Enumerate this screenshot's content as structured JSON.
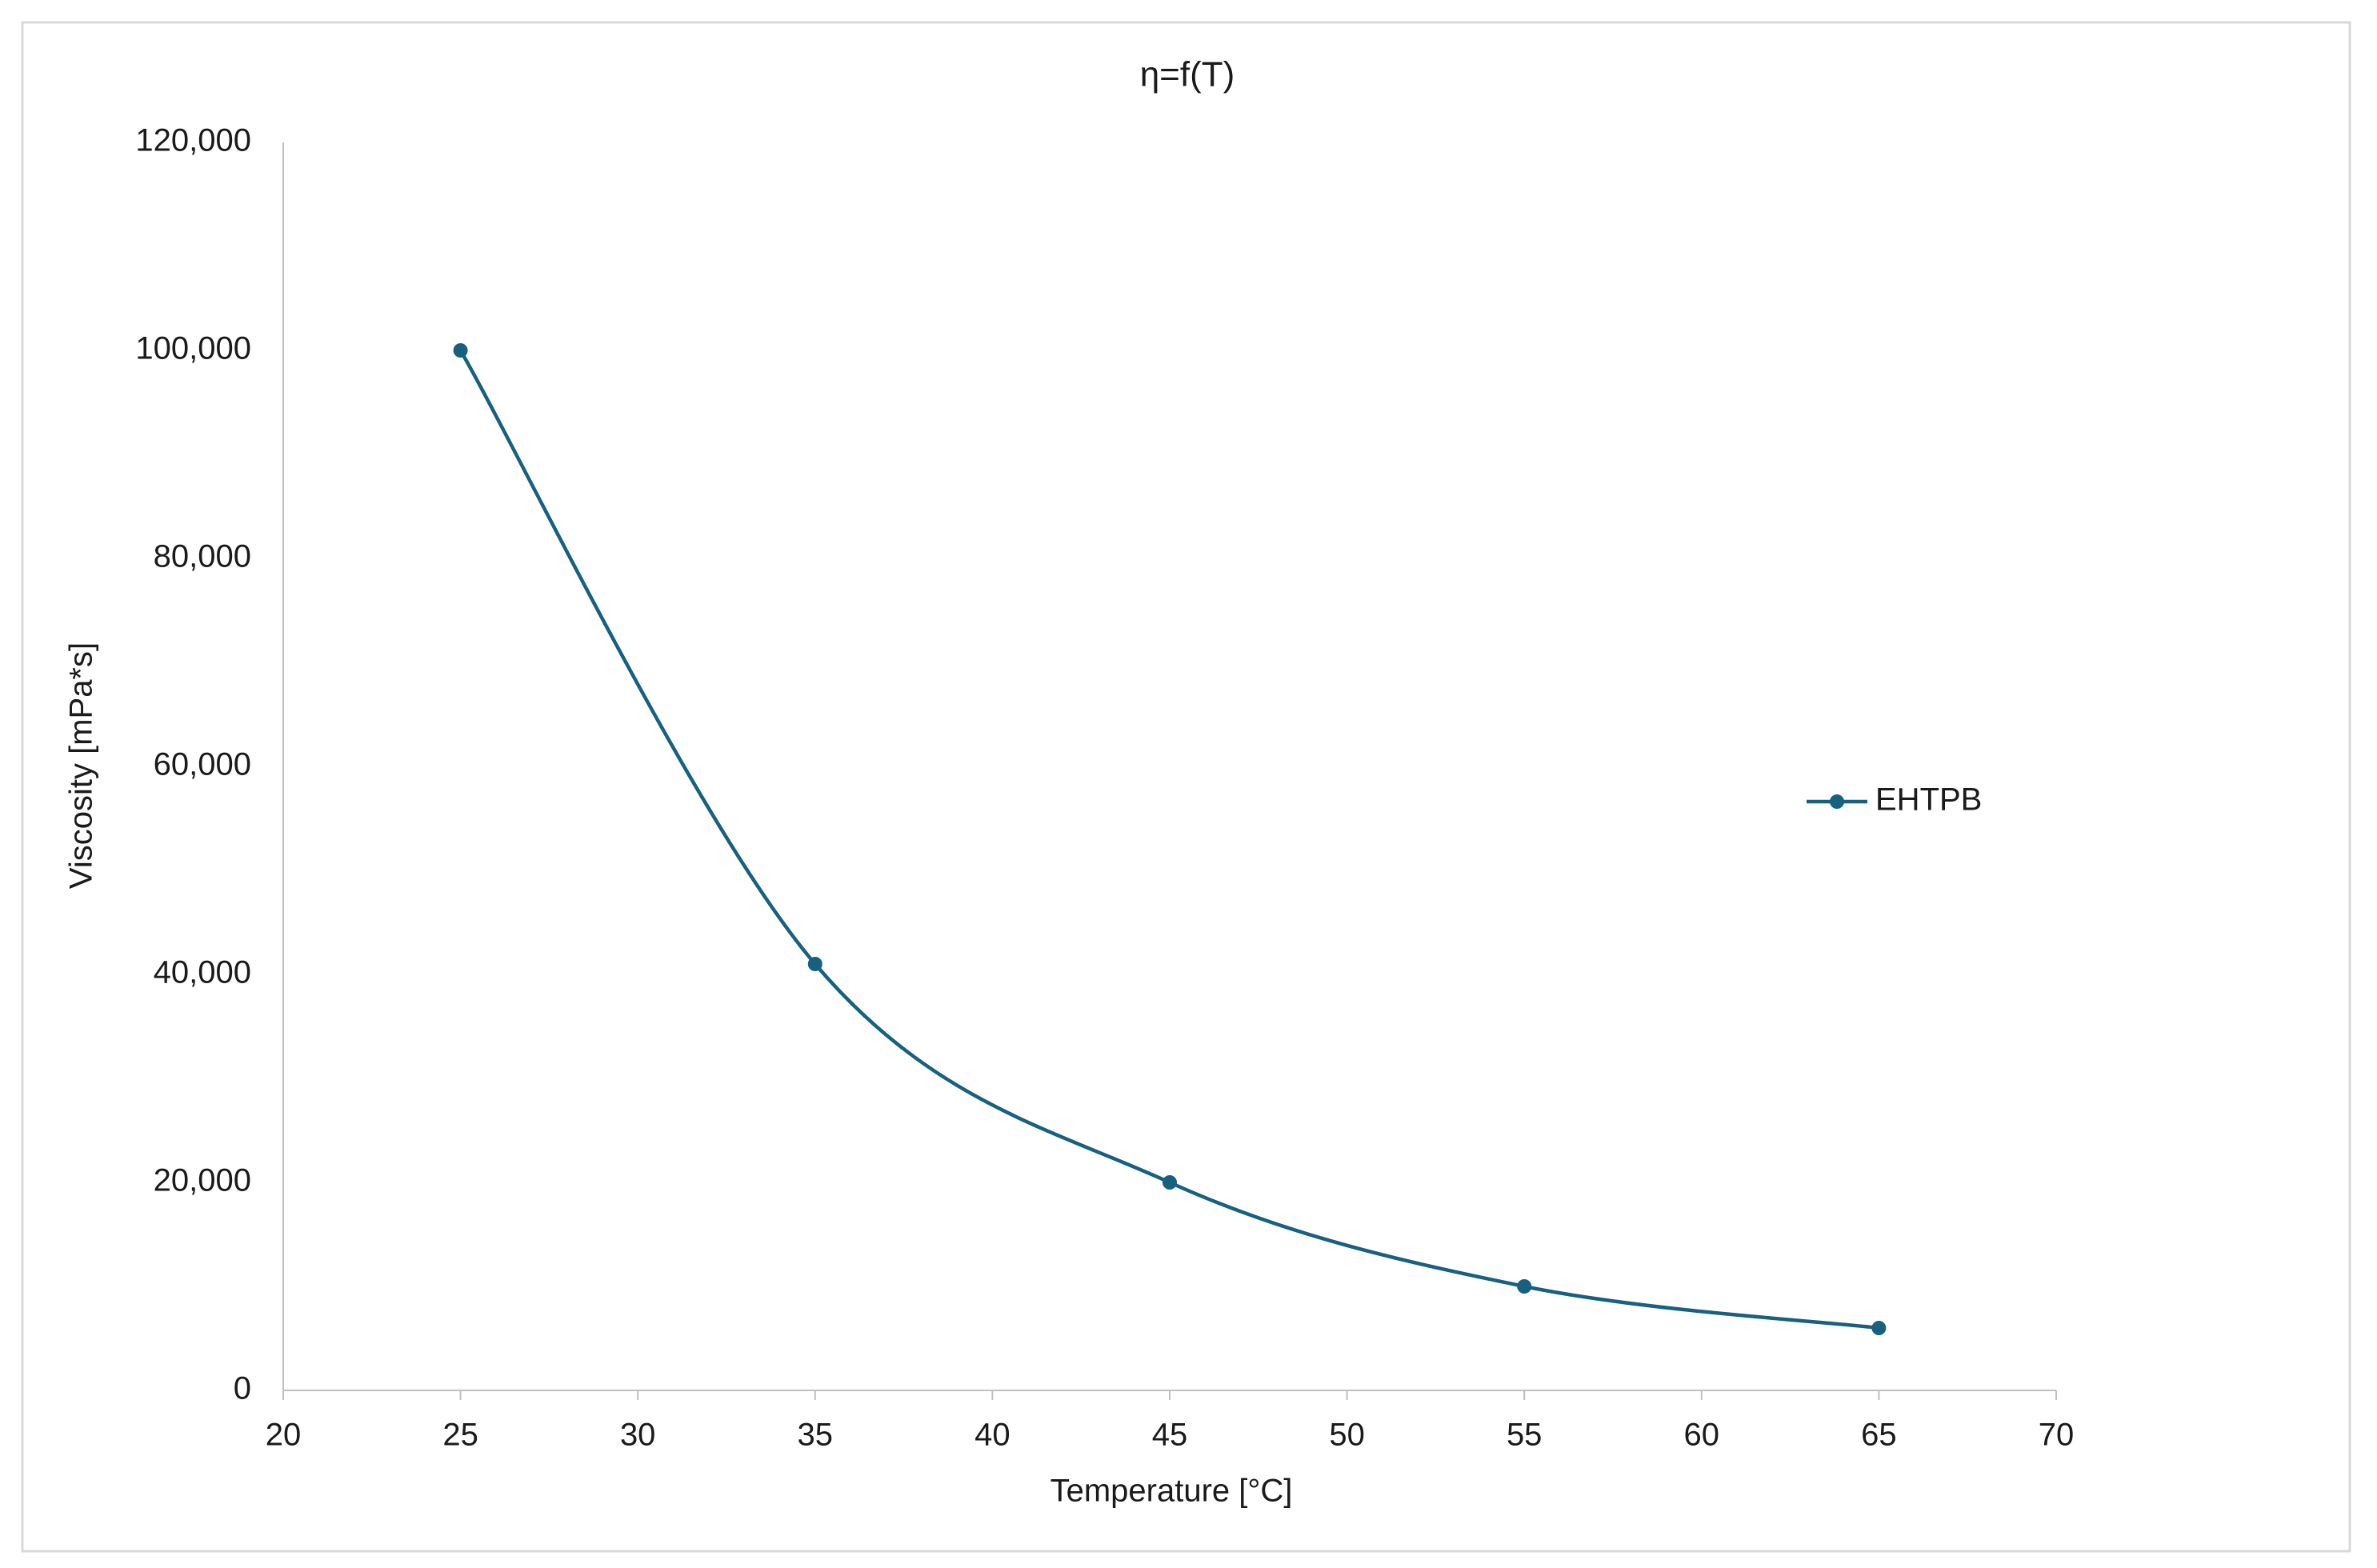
{
  "chart_data": {
    "type": "line",
    "title": "η=f(T)",
    "x_label": "Temperature [°C]",
    "y_label": "Viscosity [mPa*s]",
    "x": [
      25,
      35,
      45,
      55,
      65
    ],
    "series": [
      {
        "name": "EHTPB",
        "color": "#17607f",
        "values": [
          100000,
          41000,
          20000,
          10000,
          6000
        ]
      }
    ],
    "xlim": [
      20,
      70
    ],
    "xticks": [
      20,
      25,
      30,
      35,
      40,
      45,
      50,
      55,
      60,
      65,
      70
    ],
    "ylim": [
      0,
      120000
    ],
    "yticks": [
      0,
      {
        "value": 20000,
        "label": "20,000"
      },
      {
        "value": 40000,
        "label": "40,000"
      },
      {
        "value": 60000,
        "label": "60,000"
      },
      {
        "value": 80000,
        "label": "80,000"
      },
      {
        "value": 100000,
        "label": "100,000"
      },
      {
        "value": 120000,
        "label": "120,000"
      }
    ],
    "grid": false,
    "smooth": true,
    "legend": "right"
  }
}
